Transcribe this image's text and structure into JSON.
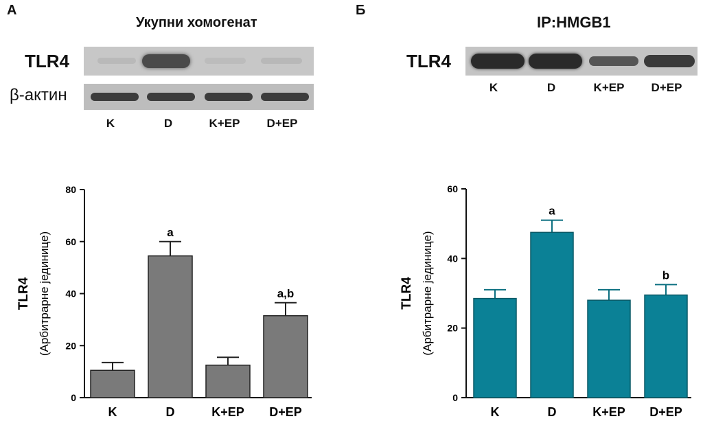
{
  "panel_a": {
    "letter": "A",
    "title": "Укупни хомогенат",
    "rows": [
      "TLR4",
      "β-актин"
    ],
    "lanes": [
      "K",
      "D",
      "K+EP",
      "D+EP"
    ]
  },
  "panel_b": {
    "letter": "Б",
    "title": "IP:HMGB1",
    "rows": [
      "TLR4"
    ],
    "lanes": [
      "K",
      "D",
      "K+EP",
      "D+EP"
    ]
  },
  "colors": {
    "bar_a": "#7a7a7a",
    "bar_b": "#0b8196",
    "err_b": "#0b6f80"
  },
  "chart_data": [
    {
      "type": "bar",
      "categories": [
        "K",
        "D",
        "K+EP",
        "D+EP"
      ],
      "values": [
        10.5,
        54.5,
        12.5,
        31.5
      ],
      "errors": [
        3,
        5.5,
        3,
        5
      ],
      "annotations": [
        "",
        "a",
        "",
        "a,b"
      ],
      "ylabel": "TLR4",
      "ylabel_sub": "(Арбитрарне јединице)",
      "ylim": [
        0,
        80
      ],
      "yticks": [
        0,
        20,
        40,
        60,
        80
      ],
      "grid": false
    },
    {
      "type": "bar",
      "categories": [
        "K",
        "D",
        "K+EP",
        "D+EP"
      ],
      "values": [
        28.5,
        47.5,
        28,
        29.5
      ],
      "errors": [
        2.5,
        3.5,
        3,
        3
      ],
      "annotations": [
        "",
        "a",
        "",
        "b"
      ],
      "ylabel": "TLR4",
      "ylabel_sub": "(Арбитрарне јединице)",
      "ylim": [
        0,
        60
      ],
      "yticks": [
        0,
        20,
        40,
        60
      ],
      "grid": false
    }
  ]
}
